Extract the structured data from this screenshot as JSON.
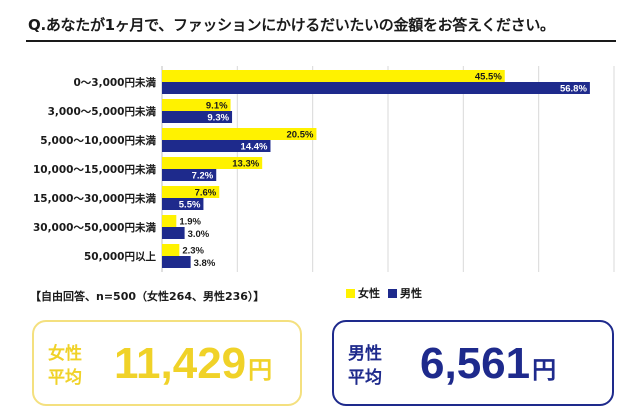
{
  "title": "Q.あなたが1ヶ月で、ファッションにかけるだいたいの金額をお答えください。",
  "note": "【自由回答、n=500（女性264、男性236）】",
  "legend": {
    "female": "女性",
    "male": "男性"
  },
  "colors": {
    "female": "#fff200",
    "male": "#1e2a8c",
    "female_box": "#f0d228",
    "grid": "#d9d9d9"
  },
  "chart_data": {
    "type": "bar",
    "orientation": "horizontal",
    "categories": [
      "0～3,000円未満",
      "3,000～5,000円未満",
      "5,000～10,000円未満",
      "10,000～15,000円未満",
      "15,000～30,000円未満",
      "30,000～50,000円未満",
      "50,000円以上"
    ],
    "series": [
      {
        "name": "女性",
        "values": [
          45.5,
          9.1,
          20.5,
          13.3,
          7.6,
          1.9,
          2.3
        ]
      },
      {
        "name": "男性",
        "values": [
          56.8,
          9.3,
          14.4,
          7.2,
          5.5,
          3.0,
          3.8
        ]
      }
    ],
    "value_labels_female": [
      "45.5%",
      "9.1%",
      "20.5%",
      "13.3%",
      "7.6%",
      "1.9%",
      "2.3%"
    ],
    "value_labels_male": [
      "56.8%",
      "9.3%",
      "14.4%",
      "7.2%",
      "5.5%",
      "3.0%",
      "3.8%"
    ],
    "xlim": [
      0,
      60
    ],
    "grid": true,
    "legend_position": "bottom-right"
  },
  "averages": {
    "female": {
      "label_line1": "女性",
      "label_line2": "平均",
      "value": "11,429",
      "unit": "円"
    },
    "male": {
      "label_line1": "男性",
      "label_line2": "平均",
      "value": "6,561",
      "unit": "円"
    }
  }
}
